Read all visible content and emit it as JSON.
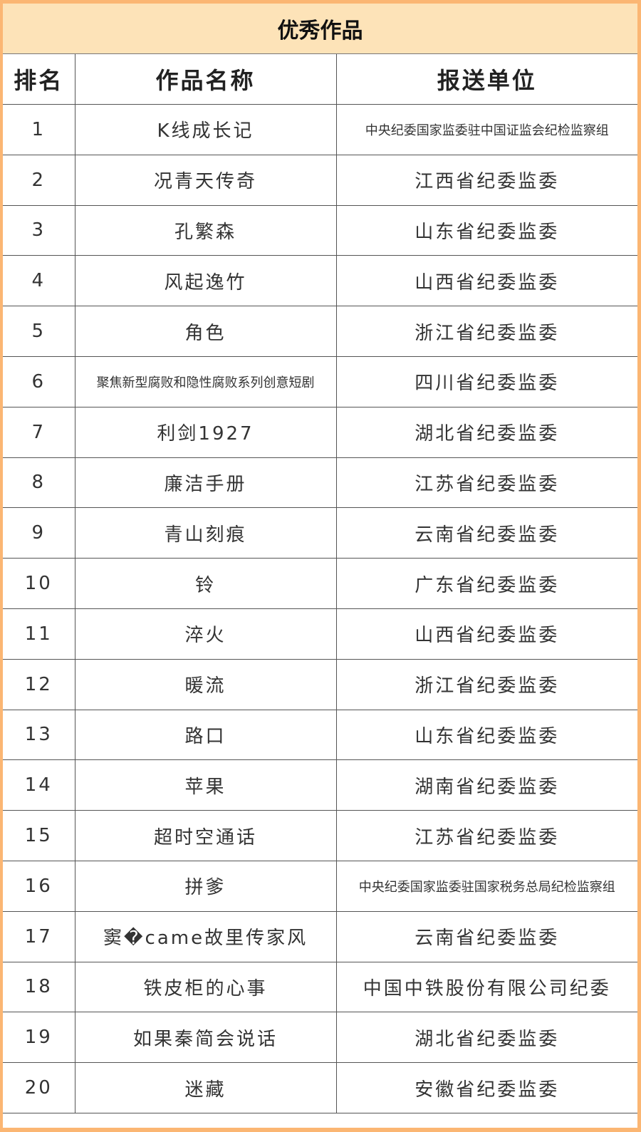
{
  "title": "优秀作品",
  "headers": [
    "排名",
    "作品名称",
    "报送单位"
  ],
  "rows": [
    {
      "rank": "1",
      "work": "K线成长记",
      "unit": "中央纪委国家监委驻中国证监会纪检监察组"
    },
    {
      "rank": "2",
      "work": "况青天传奇",
      "unit": "江西省纪委监委"
    },
    {
      "rank": "3",
      "work": "孔繁森",
      "unit": "山东省纪委监委"
    },
    {
      "rank": "4",
      "work": "风起逸竹",
      "unit": "山西省纪委监委"
    },
    {
      "rank": "5",
      "work": "角色",
      "unit": "浙江省纪委监委"
    },
    {
      "rank": "6",
      "work": "聚焦新型腐败和隐性腐败系列创意短剧",
      "unit": "四川省纪委监委"
    },
    {
      "rank": "7",
      "work": "利剑1927",
      "unit": "湖北省纪委监委"
    },
    {
      "rank": "8",
      "work": "廉洁手册",
      "unit": "江苏省纪委监委"
    },
    {
      "rank": "9",
      "work": "青山刻痕",
      "unit": "云南省纪委监委"
    },
    {
      "rank": "10",
      "work": "铃",
      "unit": "广东省纪委监委"
    },
    {
      "rank": "11",
      "work": "淬火",
      "unit": "山西省纪委监委"
    },
    {
      "rank": "12",
      "work": "暖流",
      "unit": "浙江省纪委监委"
    },
    {
      "rank": "13",
      "work": "路口",
      "unit": "山东省纪委监委"
    },
    {
      "rank": "14",
      "work": "苹果",
      "unit": "湖南省纪委监委"
    },
    {
      "rank": "15",
      "work": "超时空通话",
      "unit": "江苏省纪委监委"
    },
    {
      "rank": "16",
      "work": "拼爹",
      "unit": "中央纪委国家监委驻国家税务总局纪检监察组"
    },
    {
      "rank": "17",
      "work": "窦�came故里传家风",
      "unit": "云南省纪委监委"
    },
    {
      "rank": "18",
      "work": "铁皮柜的心事",
      "unit": "中国中铁股份有限公司纪委"
    },
    {
      "rank": "19",
      "work": "如果秦简会说话",
      "unit": "湖北省纪委监委"
    },
    {
      "rank": "20",
      "work": "迷藏",
      "unit": "安徽省纪委监委"
    }
  ],
  "colors": {
    "border": "#fbb673",
    "title_bg": "#fde3b8"
  }
}
